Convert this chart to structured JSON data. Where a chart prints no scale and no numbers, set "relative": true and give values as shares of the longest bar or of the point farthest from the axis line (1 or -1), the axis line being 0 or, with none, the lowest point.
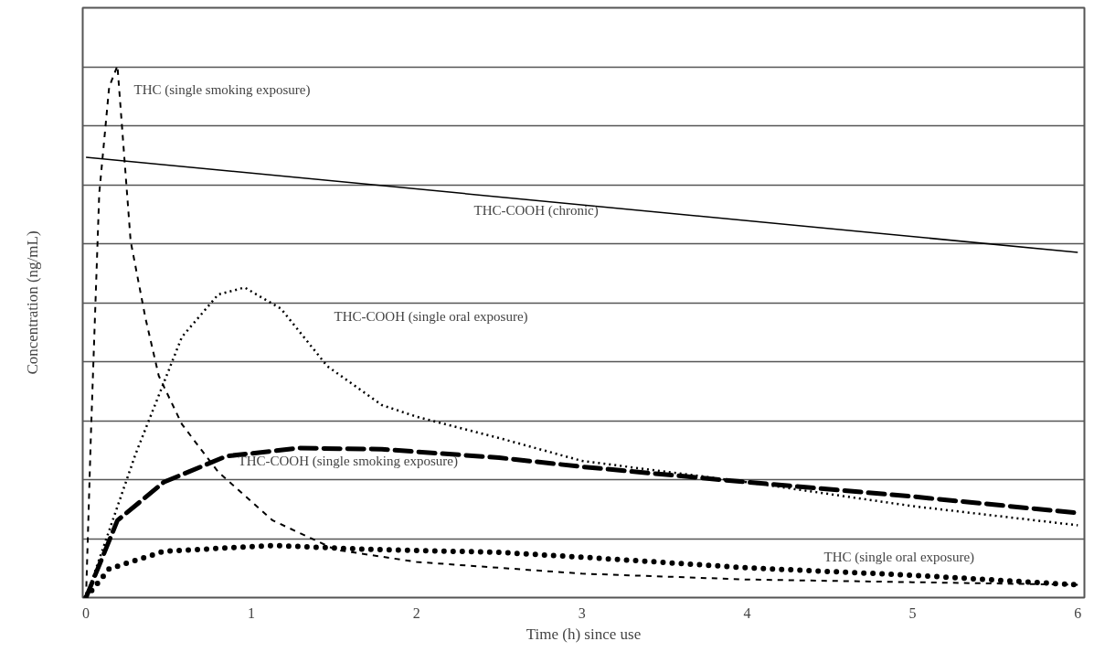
{
  "chart_data": {
    "type": "line",
    "relative": true,
    "xlabel": "Time (h) since use",
    "ylabel": "Concentration (ng/mL)",
    "xlim": [
      -0.02,
      6.04
    ],
    "xticks": [
      0,
      1,
      2,
      3,
      4,
      5,
      6
    ],
    "grid": "y",
    "series": [
      {
        "name": "THC (single smoking exposure)",
        "color": "#000000",
        "line_style": "dashed",
        "x": [
          0,
          0.03,
          0.08,
          0.14,
          0.19,
          0.27,
          0.36,
          0.44,
          0.58,
          0.8,
          1.13,
          1.51,
          2,
          3,
          4,
          5,
          6
        ],
        "values": [
          0,
          0.31,
          0.76,
          0.96,
          1.0,
          0.67,
          0.525,
          0.417,
          0.326,
          0.236,
          0.145,
          0.09,
          0.067,
          0.045,
          0.034,
          0.029,
          0.024
        ]
      },
      {
        "name": "THC-COOH (chronic)",
        "color": "#000000",
        "line_style": "solid",
        "x": [
          0,
          6
        ],
        "values": [
          0.828,
          0.649
        ]
      },
      {
        "name": "THC-COOH (single oral exposure)",
        "color": "#000000",
        "line_style": "dotted",
        "x": [
          0,
          0.3,
          0.58,
          0.8,
          0.96,
          1.18,
          1.46,
          1.79,
          2,
          2.5,
          3,
          4,
          5,
          6
        ],
        "values": [
          0,
          0.27,
          0.49,
          0.57,
          0.583,
          0.543,
          0.435,
          0.362,
          0.34,
          0.3,
          0.257,
          0.217,
          0.172,
          0.136
        ]
      },
      {
        "name": "THC-COOH (single smoking exposure)",
        "color": "#000000",
        "line_style": "dashed",
        "x": [
          0,
          0.19,
          0.47,
          0.85,
          1.29,
          1.79,
          2.5,
          3,
          4,
          5,
          6
        ],
        "values": [
          0,
          0.145,
          0.217,
          0.266,
          0.281,
          0.279,
          0.263,
          0.246,
          0.217,
          0.19,
          0.159
        ]
      },
      {
        "name": "THC (single oral exposure)",
        "color": "#000000",
        "line_style": "dotted",
        "x": [
          0,
          0.14,
          0.47,
          1.13,
          1.68,
          2.5,
          3,
          4,
          5,
          6
        ],
        "values": [
          0,
          0.054,
          0.087,
          0.098,
          0.091,
          0.085,
          0.076,
          0.056,
          0.042,
          0.024
        ]
      }
    ]
  }
}
